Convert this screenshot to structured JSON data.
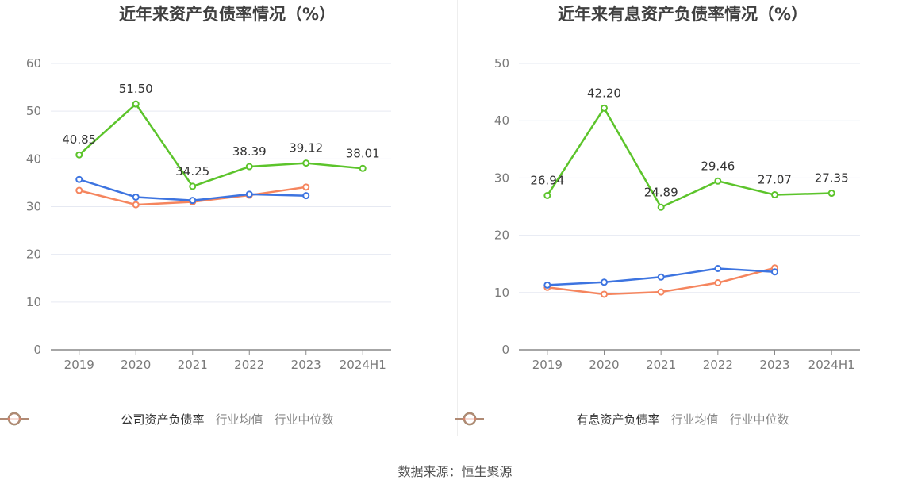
{
  "colors": {
    "company": "#5cc42b",
    "industry_avg": "#3d74e0",
    "industry_median": "#f5855e",
    "grid": "#e6e9f2",
    "axis": "#888888"
  },
  "source_text": "数据来源：恒生聚源",
  "chart_data": [
    {
      "type": "line",
      "title": "近年来资产负债率情况（%）",
      "categories": [
        "2019",
        "2020",
        "2021",
        "2022",
        "2023",
        "2024H1"
      ],
      "ylim": [
        0,
        60
      ],
      "yticks": [
        0,
        10,
        20,
        30,
        40,
        50,
        60
      ],
      "grid": true,
      "legend_position": "bottom",
      "series": [
        {
          "name": "公司资产负债率",
          "values": [
            40.85,
            51.5,
            34.25,
            38.39,
            39.12,
            38.01
          ],
          "labels": [
            "40.85",
            "51.50",
            "34.25",
            "38.39",
            "39.12",
            "38.01"
          ]
        },
        {
          "name": "行业均值",
          "values": [
            35.7,
            32.0,
            31.3,
            32.6,
            32.3,
            null
          ]
        },
        {
          "name": "行业中位数",
          "values": [
            33.4,
            30.4,
            31.0,
            32.4,
            34.1,
            null
          ]
        }
      ]
    },
    {
      "type": "line",
      "title": "近年来有息资产负债率情况（%）",
      "categories": [
        "2019",
        "2020",
        "2021",
        "2022",
        "2023",
        "2024H1"
      ],
      "ylim": [
        0,
        50
      ],
      "yticks": [
        0,
        10,
        20,
        30,
        40,
        50
      ],
      "grid": true,
      "legend_position": "bottom",
      "series": [
        {
          "name": "有息资产负债率",
          "values": [
            26.94,
            42.2,
            24.89,
            29.46,
            27.07,
            27.35
          ],
          "labels": [
            "26.94",
            "42.20",
            "24.89",
            "29.46",
            "27.07",
            "27.35"
          ]
        },
        {
          "name": "行业均值",
          "values": [
            11.3,
            11.8,
            12.7,
            14.2,
            13.6,
            null
          ]
        },
        {
          "name": "行业中位数",
          "values": [
            10.9,
            9.7,
            10.1,
            11.7,
            14.3,
            null
          ]
        }
      ]
    }
  ]
}
